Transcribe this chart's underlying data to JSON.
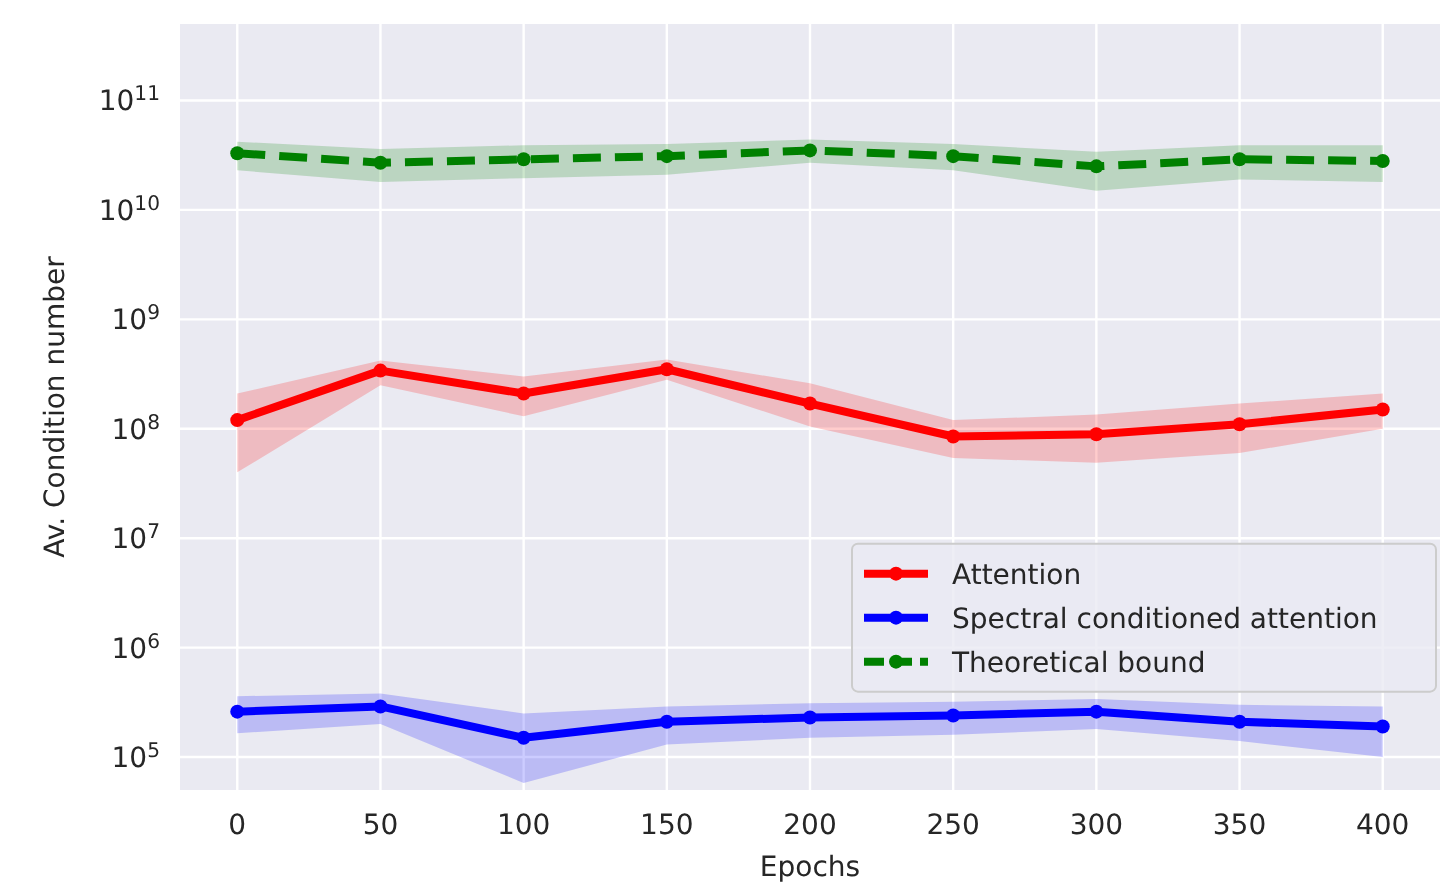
{
  "chart_data": {
    "type": "line",
    "xlabel": "Epochs",
    "ylabel": "Av. Condition number",
    "log": "y",
    "grid": true,
    "legend": "right",
    "marker": "circle",
    "x": [
      0,
      50,
      100,
      150,
      200,
      250,
      300,
      350,
      400
    ],
    "xlim": [
      -20,
      420
    ],
    "xticks": [
      0,
      50,
      100,
      150,
      200,
      250,
      300,
      350,
      400
    ],
    "ylim": [
      50000,
      500000000000
    ],
    "yticks": [
      {
        "value": 100000,
        "label": "10$^{5}$"
      },
      {
        "value": 1000000,
        "label": "10$^{6}$"
      },
      {
        "value": 10000000,
        "label": "10$^{7}$"
      },
      {
        "value": 100000000,
        "label": "10$^{8}$"
      },
      {
        "value": 1000000000,
        "label": "10$^{9}$"
      },
      {
        "value": 10000000000,
        "label": "10$^{10}$"
      },
      {
        "value": 100000000000,
        "label": "10$^{11}$"
      }
    ],
    "series": [
      {
        "name": "Attention",
        "color": "#ff0000",
        "line_style": "solid",
        "values": [
          120000000.0,
          340000000.0,
          210000000.0,
          350000000.0,
          170000000.0,
          85000000.0,
          89000000.0,
          110000000.0,
          150000000.0
        ],
        "lower": [
          40000000.0,
          250000000.0,
          130000000.0,
          280000000.0,
          105000000.0,
          54000000.0,
          49000000.0,
          60000000.0,
          100000000.0
        ],
        "upper": [
          210000000.0,
          420000000.0,
          300000000.0,
          430000000.0,
          260000000.0,
          120000000.0,
          135000000.0,
          170000000.0,
          210000000.0
        ]
      },
      {
        "name": "Spectral conditioned attention",
        "color": "#0000ff",
        "line_style": "solid",
        "values": [
          260000.0,
          290000.0,
          150000.0,
          210000.0,
          230000.0,
          240000.0,
          260000.0,
          210000.0,
          190000.0
        ],
        "lower": [
          165000.0,
          200000.0,
          58000.0,
          130000.0,
          150000.0,
          160000.0,
          180000.0,
          140000.0,
          100000.0
        ],
        "upper": [
          360000.0,
          380000.0,
          250000.0,
          290000.0,
          310000.0,
          320000.0,
          340000.0,
          300000.0,
          290000.0
        ]
      },
      {
        "name": "Theoretical bound",
        "color": "#008000",
        "line_style": "dashed",
        "values": [
          33000000000.0,
          27000000000.0,
          29000000000.0,
          31000000000.0,
          35000000000.0,
          31000000000.0,
          25000000000.0,
          29000000000.0,
          28000000000.0
        ],
        "lower": [
          23000000000.0,
          18000000000.0,
          19500000000.0,
          21000000000.0,
          27000000000.0,
          23000000000.0,
          15000000000.0,
          19000000000.0,
          18000000000.0
        ],
        "upper": [
          42000000000.0,
          36000000000.0,
          39000000000.0,
          40000000000.0,
          44000000000.0,
          40000000000.0,
          34000000000.0,
          39000000000.0,
          39000000000.0
        ]
      }
    ]
  }
}
